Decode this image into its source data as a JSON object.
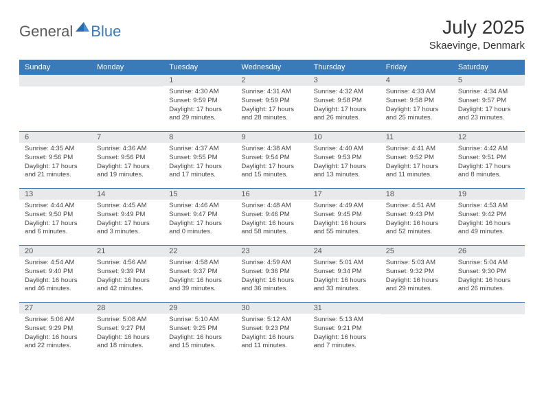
{
  "logo": {
    "general": "General",
    "blue": "Blue"
  },
  "title": "July 2025",
  "location": "Skaevinge, Denmark",
  "colors": {
    "header_bg": "#3a7ab8",
    "daynum_bg": "#e8e9ea",
    "week_border": "#3a7ab8",
    "text": "#444444"
  },
  "dayHeaders": [
    "Sunday",
    "Monday",
    "Tuesday",
    "Wednesday",
    "Thursday",
    "Friday",
    "Saturday"
  ],
  "weeks": [
    [
      null,
      null,
      {
        "n": "1",
        "sr": "4:30 AM",
        "ss": "9:59 PM",
        "dl": "17 hours and 29 minutes."
      },
      {
        "n": "2",
        "sr": "4:31 AM",
        "ss": "9:59 PM",
        "dl": "17 hours and 28 minutes."
      },
      {
        "n": "3",
        "sr": "4:32 AM",
        "ss": "9:58 PM",
        "dl": "17 hours and 26 minutes."
      },
      {
        "n": "4",
        "sr": "4:33 AM",
        "ss": "9:58 PM",
        "dl": "17 hours and 25 minutes."
      },
      {
        "n": "5",
        "sr": "4:34 AM",
        "ss": "9:57 PM",
        "dl": "17 hours and 23 minutes."
      }
    ],
    [
      {
        "n": "6",
        "sr": "4:35 AM",
        "ss": "9:56 PM",
        "dl": "17 hours and 21 minutes."
      },
      {
        "n": "7",
        "sr": "4:36 AM",
        "ss": "9:56 PM",
        "dl": "17 hours and 19 minutes."
      },
      {
        "n": "8",
        "sr": "4:37 AM",
        "ss": "9:55 PM",
        "dl": "17 hours and 17 minutes."
      },
      {
        "n": "9",
        "sr": "4:38 AM",
        "ss": "9:54 PM",
        "dl": "17 hours and 15 minutes."
      },
      {
        "n": "10",
        "sr": "4:40 AM",
        "ss": "9:53 PM",
        "dl": "17 hours and 13 minutes."
      },
      {
        "n": "11",
        "sr": "4:41 AM",
        "ss": "9:52 PM",
        "dl": "17 hours and 11 minutes."
      },
      {
        "n": "12",
        "sr": "4:42 AM",
        "ss": "9:51 PM",
        "dl": "17 hours and 8 minutes."
      }
    ],
    [
      {
        "n": "13",
        "sr": "4:44 AM",
        "ss": "9:50 PM",
        "dl": "17 hours and 6 minutes."
      },
      {
        "n": "14",
        "sr": "4:45 AM",
        "ss": "9:49 PM",
        "dl": "17 hours and 3 minutes."
      },
      {
        "n": "15",
        "sr": "4:46 AM",
        "ss": "9:47 PM",
        "dl": "17 hours and 0 minutes."
      },
      {
        "n": "16",
        "sr": "4:48 AM",
        "ss": "9:46 PM",
        "dl": "16 hours and 58 minutes."
      },
      {
        "n": "17",
        "sr": "4:49 AM",
        "ss": "9:45 PM",
        "dl": "16 hours and 55 minutes."
      },
      {
        "n": "18",
        "sr": "4:51 AM",
        "ss": "9:43 PM",
        "dl": "16 hours and 52 minutes."
      },
      {
        "n": "19",
        "sr": "4:53 AM",
        "ss": "9:42 PM",
        "dl": "16 hours and 49 minutes."
      }
    ],
    [
      {
        "n": "20",
        "sr": "4:54 AM",
        "ss": "9:40 PM",
        "dl": "16 hours and 46 minutes."
      },
      {
        "n": "21",
        "sr": "4:56 AM",
        "ss": "9:39 PM",
        "dl": "16 hours and 42 minutes."
      },
      {
        "n": "22",
        "sr": "4:58 AM",
        "ss": "9:37 PM",
        "dl": "16 hours and 39 minutes."
      },
      {
        "n": "23",
        "sr": "4:59 AM",
        "ss": "9:36 PM",
        "dl": "16 hours and 36 minutes."
      },
      {
        "n": "24",
        "sr": "5:01 AM",
        "ss": "9:34 PM",
        "dl": "16 hours and 33 minutes."
      },
      {
        "n": "25",
        "sr": "5:03 AM",
        "ss": "9:32 PM",
        "dl": "16 hours and 29 minutes."
      },
      {
        "n": "26",
        "sr": "5:04 AM",
        "ss": "9:30 PM",
        "dl": "16 hours and 26 minutes."
      }
    ],
    [
      {
        "n": "27",
        "sr": "5:06 AM",
        "ss": "9:29 PM",
        "dl": "16 hours and 22 minutes."
      },
      {
        "n": "28",
        "sr": "5:08 AM",
        "ss": "9:27 PM",
        "dl": "16 hours and 18 minutes."
      },
      {
        "n": "29",
        "sr": "5:10 AM",
        "ss": "9:25 PM",
        "dl": "16 hours and 15 minutes."
      },
      {
        "n": "30",
        "sr": "5:12 AM",
        "ss": "9:23 PM",
        "dl": "16 hours and 11 minutes."
      },
      {
        "n": "31",
        "sr": "5:13 AM",
        "ss": "9:21 PM",
        "dl": "16 hours and 7 minutes."
      },
      null,
      null
    ]
  ],
  "labels": {
    "sunrise": "Sunrise:",
    "sunset": "Sunset:",
    "daylight": "Daylight:"
  }
}
